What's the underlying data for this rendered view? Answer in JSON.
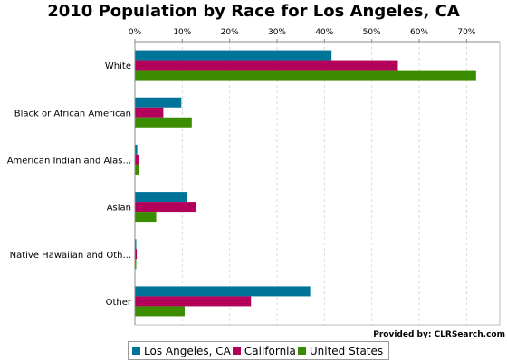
{
  "chart_data": {
    "type": "bar",
    "orientation": "horizontal",
    "title": "2010 Population by Race for Los Angeles, CA",
    "xlabel": "",
    "ylabel": "",
    "xlim": [
      0,
      0.77
    ],
    "x_ticks": [
      0,
      0.1,
      0.2,
      0.3,
      0.4,
      0.5,
      0.6,
      0.7
    ],
    "x_tick_labels": [
      "0%",
      "10%",
      "20%",
      "30%",
      "40%",
      "50%",
      "60%",
      "70%"
    ],
    "grid": true,
    "legend_position": "bottom",
    "categories": [
      "White",
      "Black or African American",
      "American Indian and Alas...",
      "Asian",
      "Native Hawaiian and Oth...",
      "Other"
    ],
    "series": [
      {
        "name": "Los Angeles, CA",
        "color": "#007399",
        "values": [
          0.415,
          0.098,
          0.005,
          0.11,
          0.002,
          0.37
        ]
      },
      {
        "name": "California",
        "color": "#b3005a",
        "values": [
          0.555,
          0.06,
          0.009,
          0.128,
          0.004,
          0.245
        ]
      },
      {
        "name": "United States",
        "color": "#3c8c00",
        "values": [
          0.72,
          0.12,
          0.009,
          0.045,
          0.002,
          0.105
        ]
      }
    ]
  },
  "credit": "Provided by: CLRSearch.com"
}
